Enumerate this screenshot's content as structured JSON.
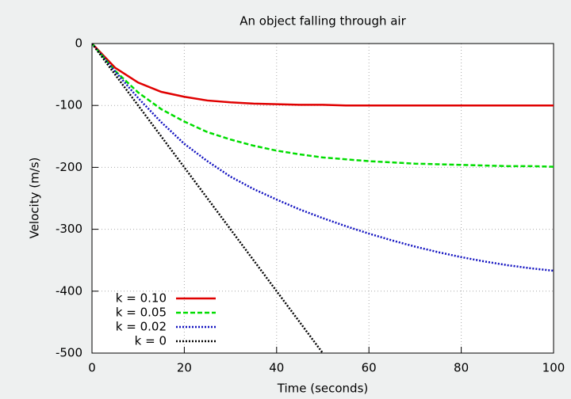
{
  "chart_data": {
    "type": "line",
    "title": "An object falling through air",
    "xlabel": "Time (seconds)",
    "ylabel": "Velocity (m/s)",
    "x": [
      0,
      5,
      10,
      15,
      20,
      25,
      30,
      35,
      40,
      45,
      50,
      55,
      60,
      65,
      70,
      75,
      80,
      85,
      90,
      95,
      100
    ],
    "series": [
      {
        "name": "k = 0.10",
        "color": "#e00000",
        "dash": "solid",
        "values": [
          0,
          -39,
          -63,
          -78,
          -86,
          -92,
          -95,
          -97,
          -98,
          -99,
          -99,
          -100,
          -100,
          -100,
          -100,
          -100,
          -100,
          -100,
          -100,
          -100,
          -100
        ]
      },
      {
        "name": "k = 0.05",
        "color": "#00dd00",
        "dash": "dashed",
        "values": [
          0,
          -44,
          -79,
          -106,
          -126,
          -143,
          -155,
          -165,
          -173,
          -179,
          -184,
          -187,
          -190,
          -192,
          -194,
          -195,
          -196,
          -197,
          -198,
          -198,
          -199
        ]
      },
      {
        "name": "k = 0.02",
        "color": "#1010c0",
        "dash": "dotted",
        "values": [
          0,
          -45,
          -88,
          -127,
          -162,
          -190,
          -215,
          -235,
          -252,
          -268,
          -282,
          -295,
          -307,
          -318,
          -328,
          -337,
          -345,
          -352,
          -358,
          -363,
          -367
        ]
      },
      {
        "name": "k = 0",
        "color": "#000000",
        "dash": "dotted",
        "values": [
          0,
          -50,
          -100,
          -150,
          -200,
          -250,
          -300,
          -350,
          -400,
          -450,
          -500,
          null,
          null,
          null,
          null,
          null,
          null,
          null,
          null,
          null,
          null
        ]
      }
    ],
    "xlim": [
      0,
      100
    ],
    "ylim": [
      -500,
      0
    ],
    "xticks": [
      0,
      20,
      40,
      60,
      80,
      100
    ],
    "yticks": [
      -500,
      -400,
      -300,
      -200,
      -100,
      0
    ],
    "grid": true,
    "legend": "lower left"
  }
}
